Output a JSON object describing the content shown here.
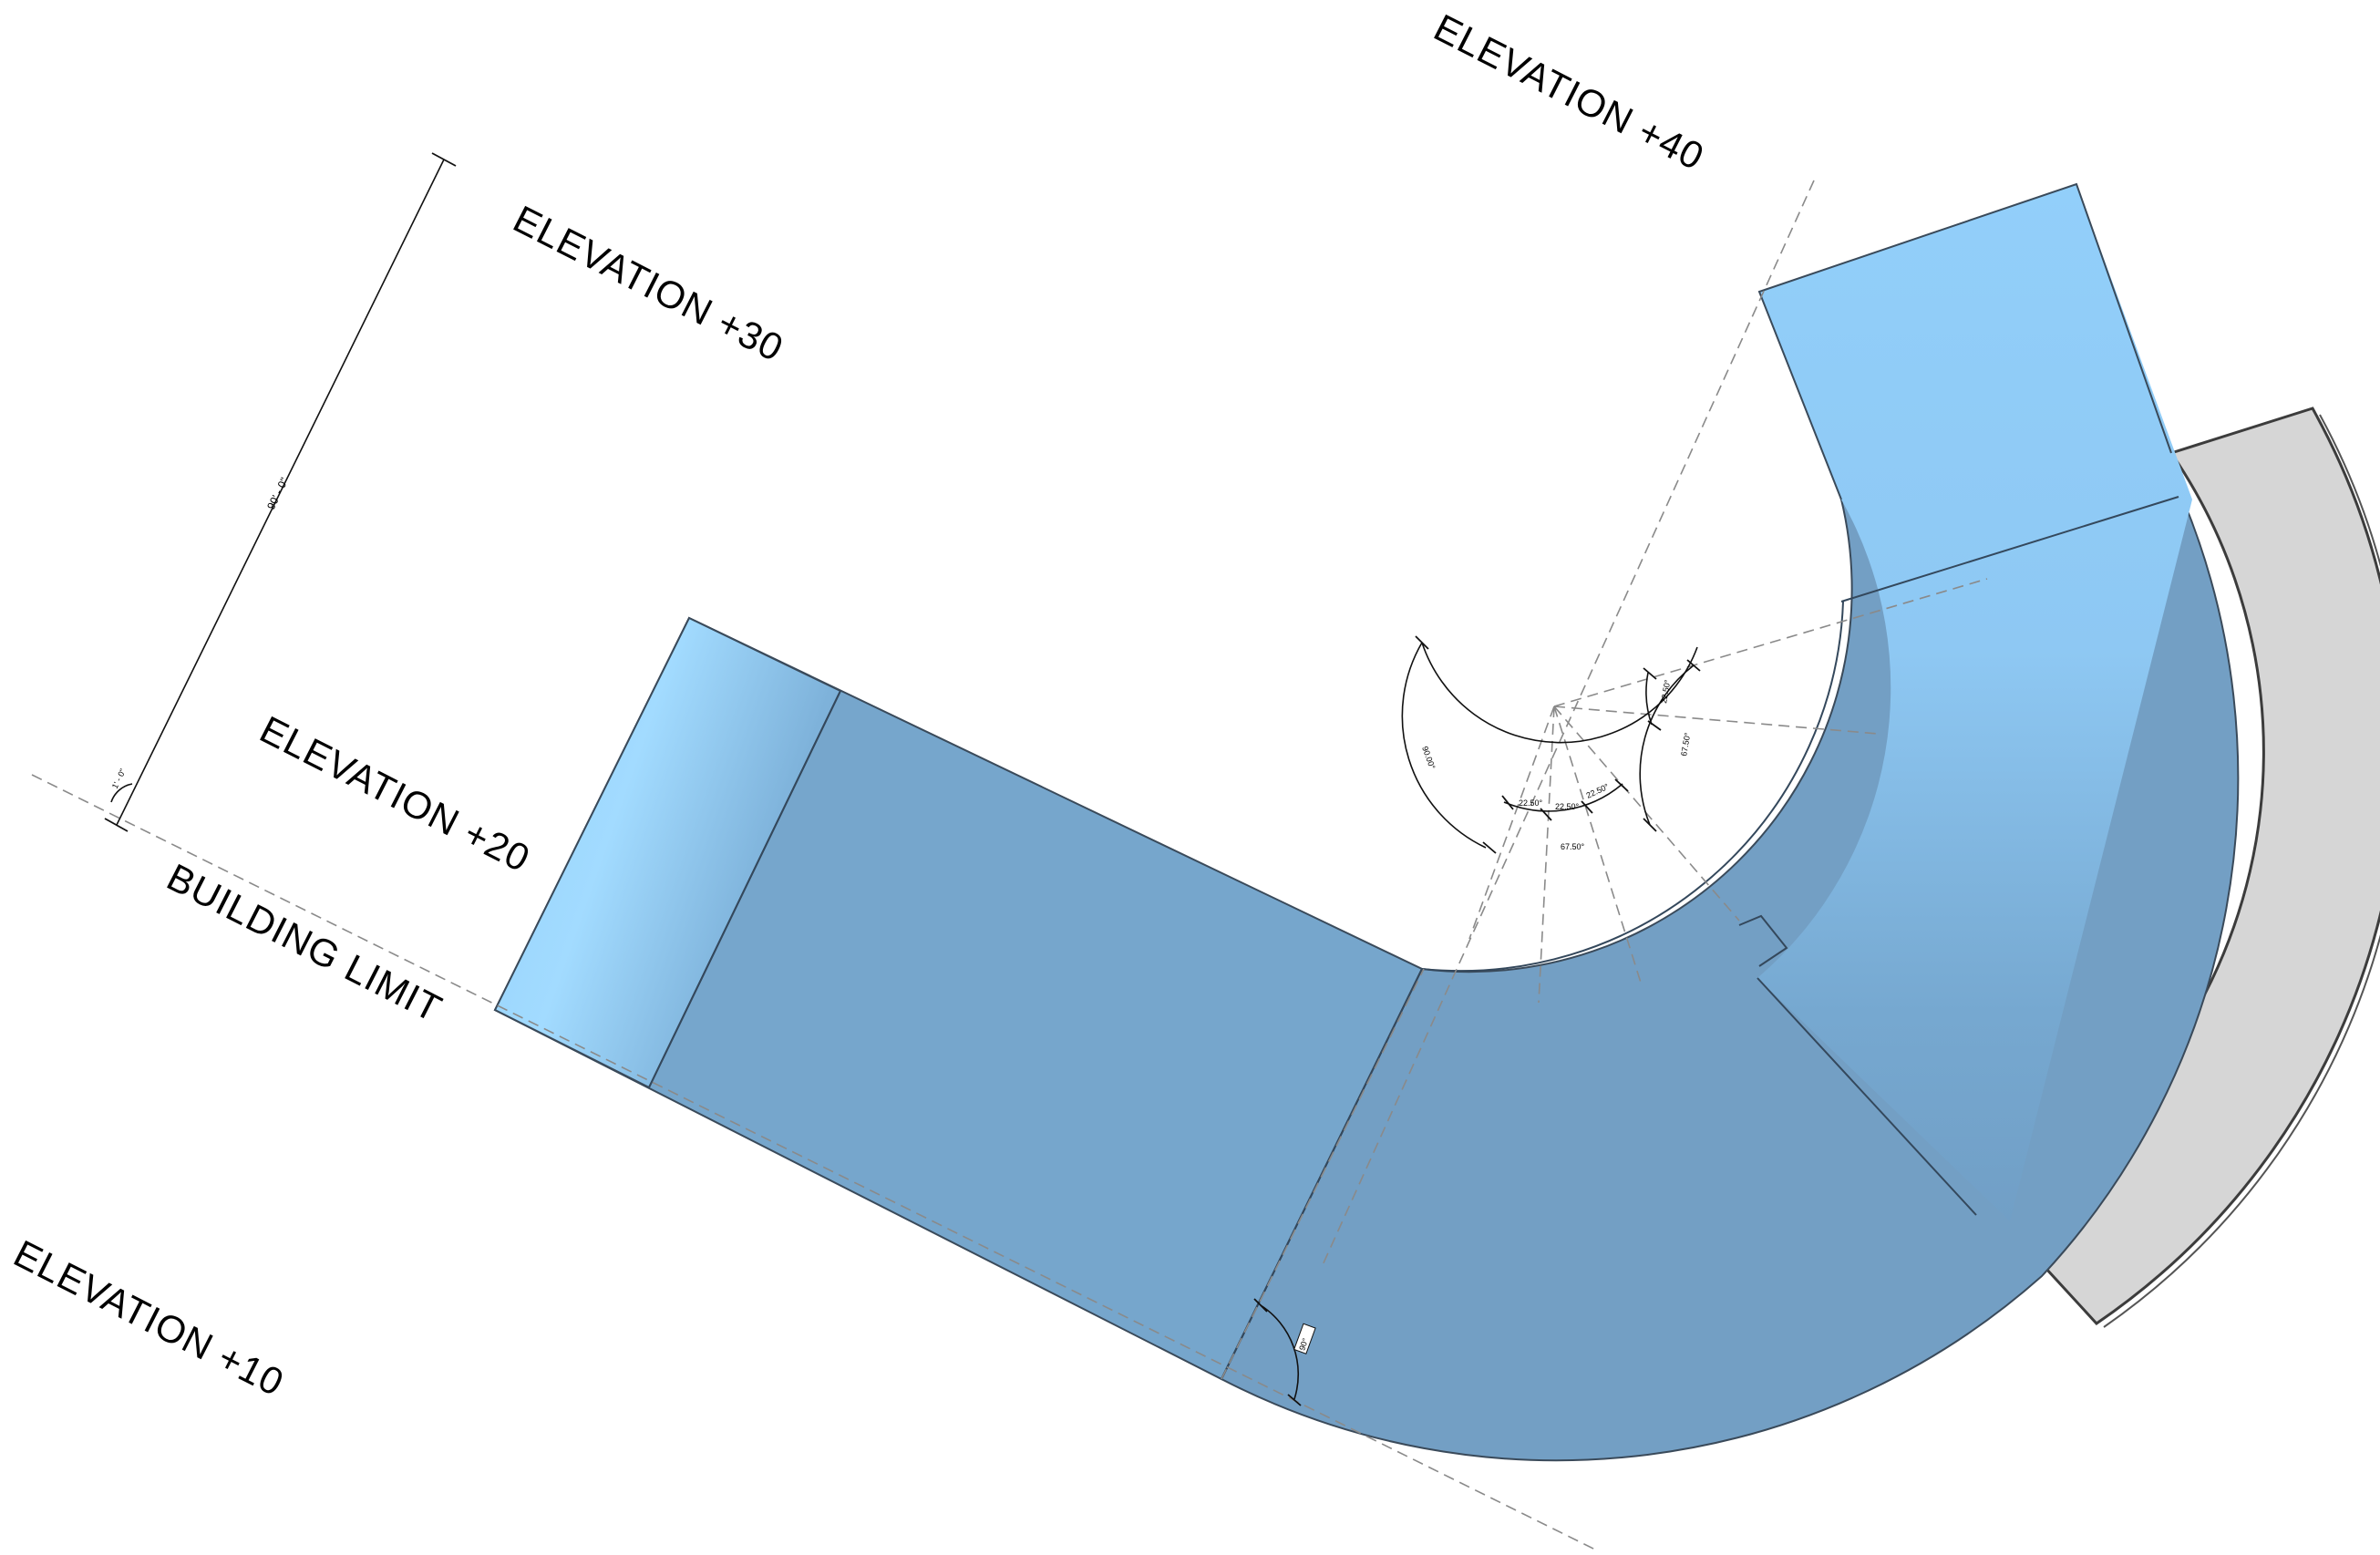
{
  "labels": {
    "elevation_40": "ELEVATION +40",
    "elevation_30": "ELEVATION +30",
    "elevation_20": "ELEVATION +20",
    "elevation_10": "ELEVATION +10",
    "building_limit": "BUILDING LIMIT"
  },
  "dimensions": {
    "overall_length": "90' - 0\"",
    "offset": "1' - 0\"",
    "angle_90_left": "90.00°",
    "angle_67_bottom": "67.50°",
    "angle_67_right": "67.50°",
    "angle_22_a": "22.50°",
    "angle_22_b": "22.50°",
    "angle_22_c": "22.50°",
    "angle_22_right": "22.50°",
    "angle_base": "90°"
  },
  "colors": {
    "ramp_fill": "#76a6cc",
    "ramp_fill_dark": "#6f9ec5",
    "sky_light": "#94d0fb",
    "wall_fill": "#d6d6d6",
    "outline": "#3a4a5a"
  }
}
